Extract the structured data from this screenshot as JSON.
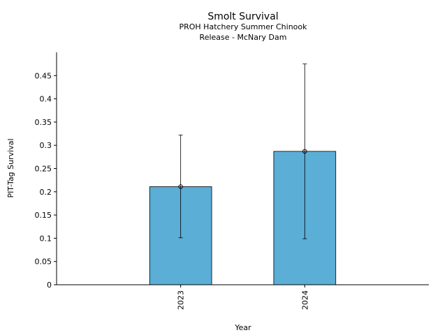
{
  "chart_data": {
    "type": "bar",
    "title": "Smolt Survival",
    "subtitle_lines": [
      "PROH Hatchery Summer Chinook",
      "Release - McNary Dam"
    ],
    "xlabel": "Year",
    "ylabel": "PIT-Tag Survival",
    "categories": [
      "2023",
      "2024"
    ],
    "values": [
      0.211,
      0.287
    ],
    "error_low": [
      0.101,
      0.099
    ],
    "error_high": [
      0.322,
      0.475
    ],
    "ylim": [
      0,
      0.5
    ],
    "yticks": [
      0,
      0.05,
      0.1,
      0.15,
      0.2,
      0.25,
      0.3,
      0.35,
      0.4,
      0.45
    ],
    "ytick_labels": [
      "0",
      "0.05",
      "0.1",
      "0.15",
      "0.2",
      "0.25",
      "0.3",
      "0.35",
      "0.4",
      "0.45"
    ],
    "bar_color": "#5BAED6",
    "grid": false,
    "legend": "none"
  }
}
